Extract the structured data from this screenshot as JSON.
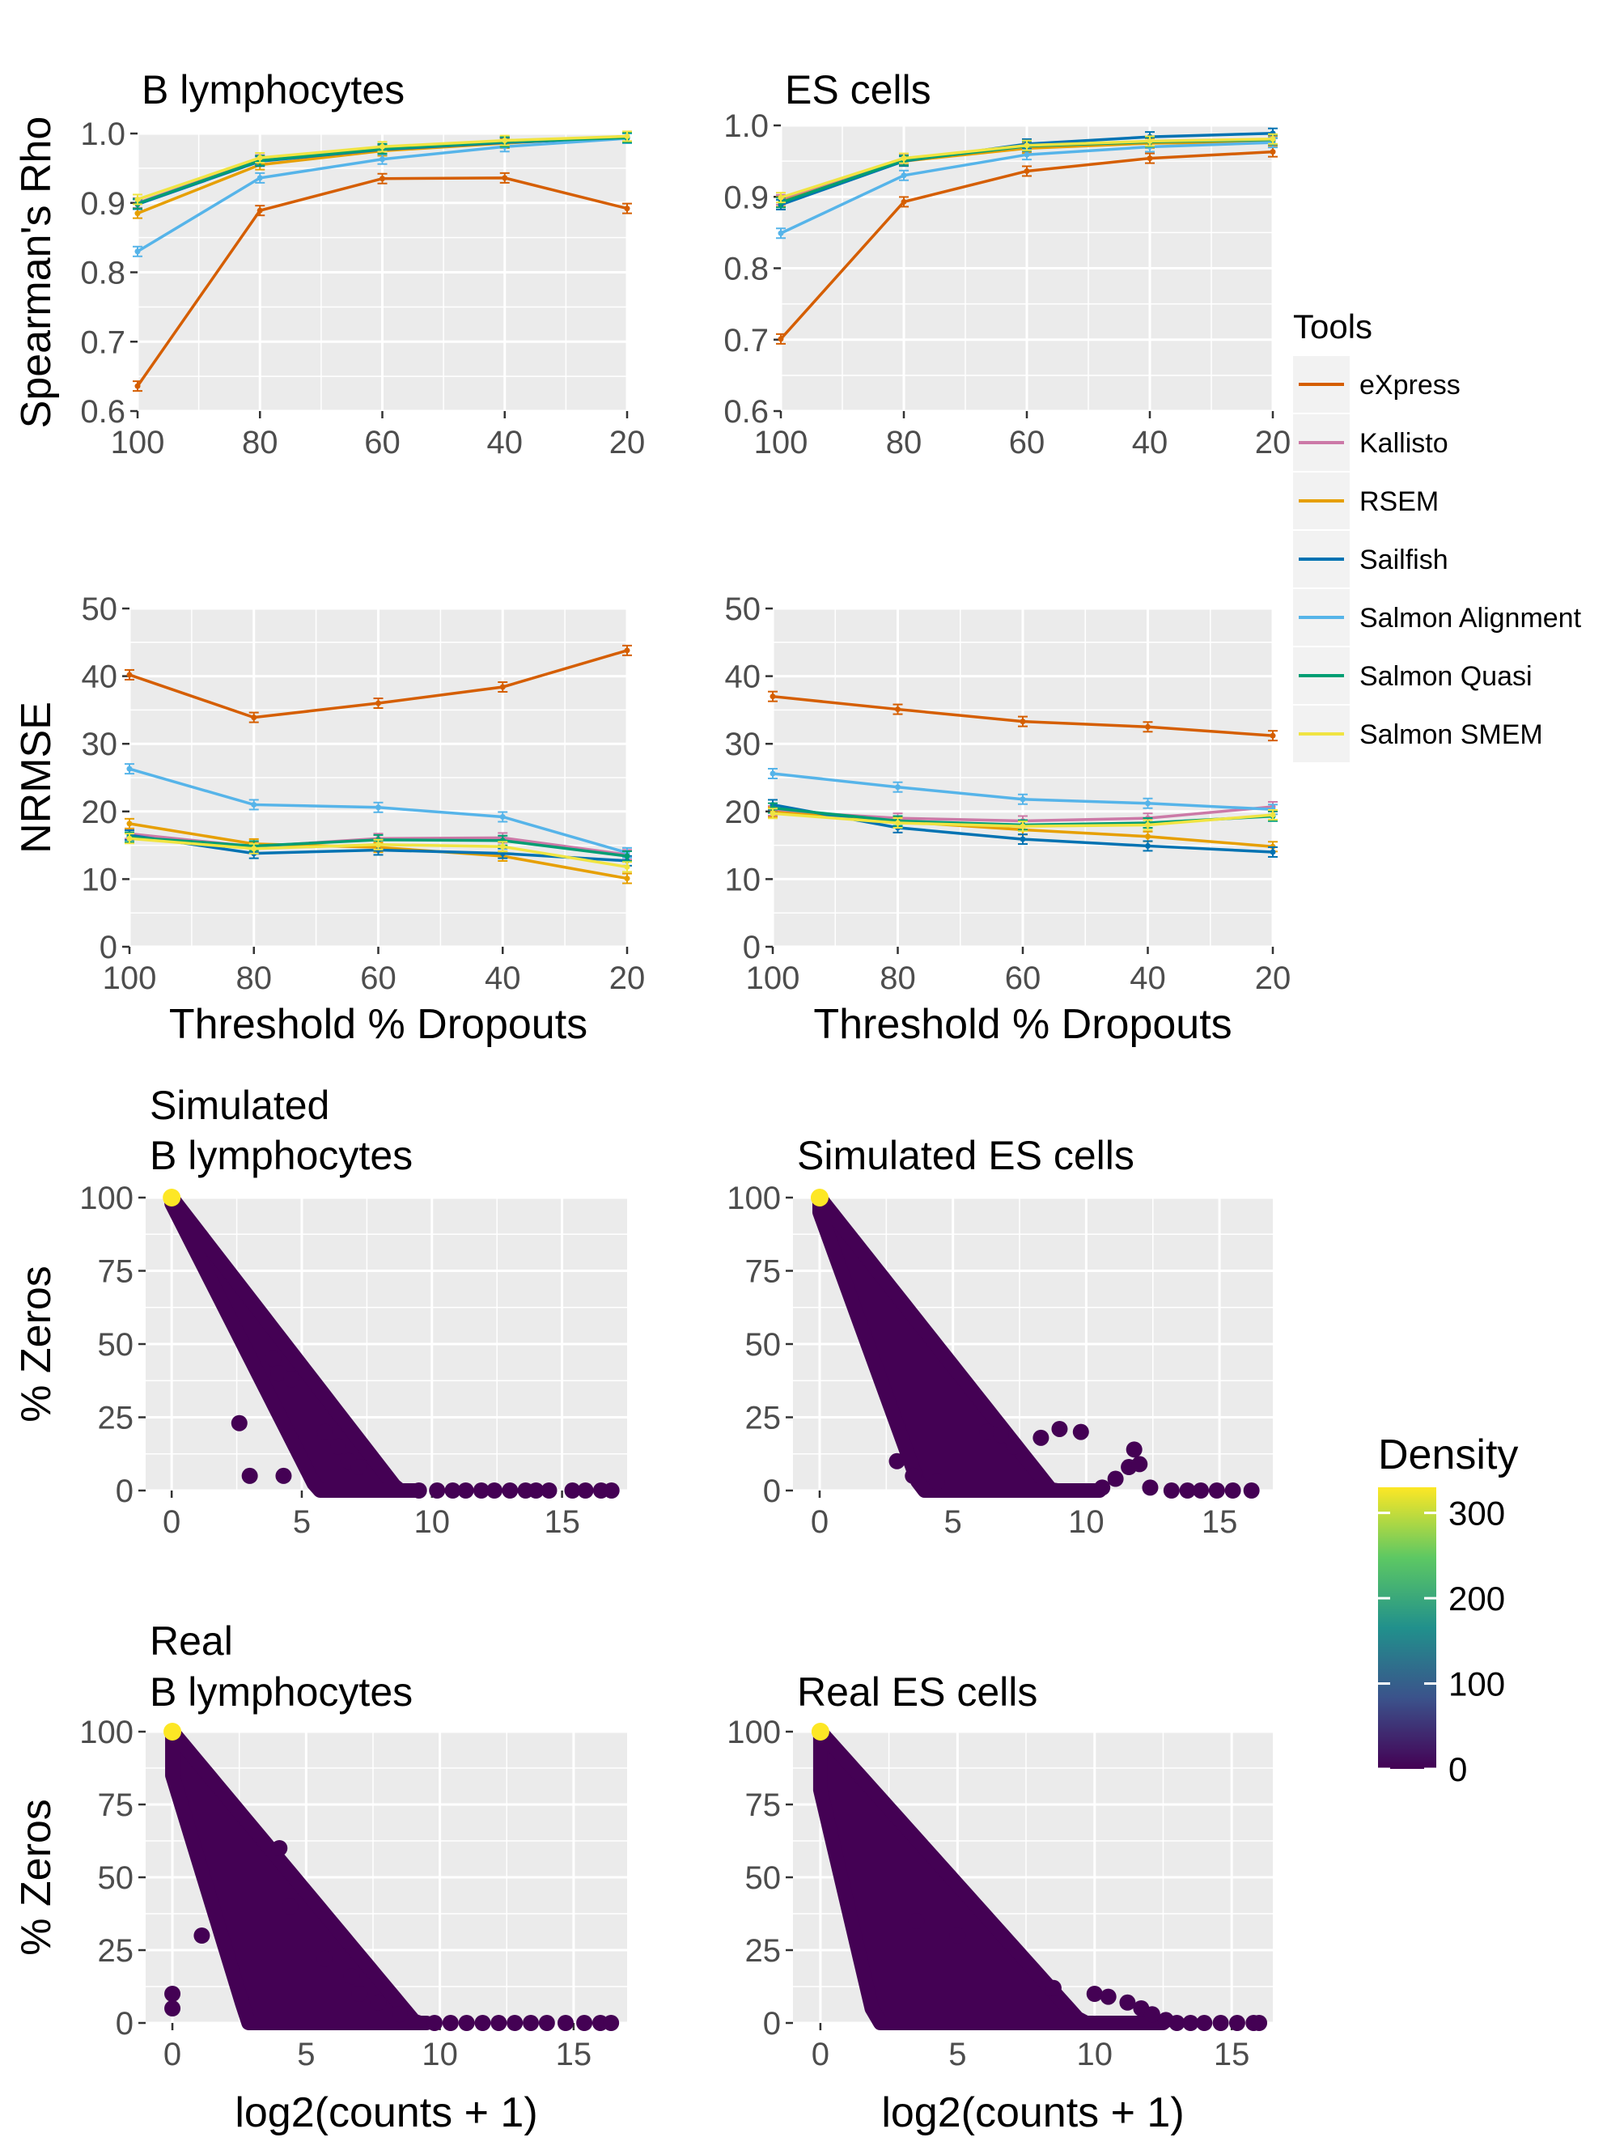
{
  "chart_data": [
    {
      "type": "line",
      "title": "B lymphocytes",
      "xlabel": "",
      "ylabel": "Spearman's Rho",
      "x": [
        100,
        80,
        60,
        40,
        20
      ],
      "xlim": [
        100,
        20
      ],
      "xticks": [
        100,
        80,
        60,
        40,
        20
      ],
      "ylim": [
        0.6,
        1.0
      ],
      "yticks": [
        "0.6",
        "0.7",
        "0.8",
        "0.9",
        "1.0"
      ],
      "series": [
        {
          "name": "eXpress",
          "values": [
            0.636,
            0.889,
            0.935,
            0.936,
            0.892
          ]
        },
        {
          "name": "Kallisto",
          "values": [
            0.9,
            0.962,
            0.978,
            0.988,
            0.994
          ]
        },
        {
          "name": "RSEM",
          "values": [
            0.885,
            0.955,
            0.975,
            0.986,
            0.996
          ]
        },
        {
          "name": "Sailfish",
          "values": [
            0.898,
            0.96,
            0.977,
            0.987,
            0.994
          ]
        },
        {
          "name": "Salmon Alignment",
          "values": [
            0.83,
            0.936,
            0.963,
            0.981,
            0.993
          ]
        },
        {
          "name": "Salmon Quasi",
          "values": [
            0.899,
            0.961,
            0.978,
            0.988,
            0.994
          ]
        },
        {
          "name": "Salmon SMEM",
          "values": [
            0.905,
            0.965,
            0.981,
            0.99,
            0.996
          ]
        }
      ]
    },
    {
      "type": "line",
      "title": "ES cells",
      "xlabel": "",
      "ylabel": "",
      "x": [
        100,
        80,
        60,
        40,
        20
      ],
      "xlim": [
        100,
        20
      ],
      "xticks": [
        100,
        80,
        60,
        40,
        20
      ],
      "ylim": [
        0.6,
        1.0
      ],
      "yticks": [
        "0.6",
        "0.7",
        "0.8",
        "0.9",
        "1.0"
      ],
      "series": [
        {
          "name": "eXpress",
          "values": [
            0.701,
            0.893,
            0.936,
            0.954,
            0.963
          ]
        },
        {
          "name": "Kallisto",
          "values": [
            0.896,
            0.952,
            0.97,
            0.976,
            0.978
          ]
        },
        {
          "name": "RSEM",
          "values": [
            0.893,
            0.95,
            0.968,
            0.975,
            0.977
          ]
        },
        {
          "name": "Sailfish",
          "values": [
            0.889,
            0.95,
            0.974,
            0.984,
            0.989
          ]
        },
        {
          "name": "Salmon Alignment",
          "values": [
            0.849,
            0.93,
            0.959,
            0.97,
            0.976
          ]
        },
        {
          "name": "Salmon Quasi",
          "values": [
            0.892,
            0.951,
            0.971,
            0.977,
            0.98
          ]
        },
        {
          "name": "Salmon SMEM",
          "values": [
            0.899,
            0.954,
            0.972,
            0.978,
            0.981
          ]
        }
      ]
    },
    {
      "type": "line",
      "title": "",
      "xlabel": "Threshold % Dropouts",
      "ylabel": "NRMSE",
      "x": [
        100,
        80,
        60,
        40,
        20
      ],
      "xlim": [
        100,
        20
      ],
      "xticks": [
        100,
        80,
        60,
        40,
        20
      ],
      "ylim": [
        0,
        50
      ],
      "yticks": [
        "0",
        "10",
        "20",
        "30",
        "40",
        "50"
      ],
      "series": [
        {
          "name": "eXpress",
          "values": [
            40.2,
            33.9,
            36.0,
            38.4,
            43.8
          ]
        },
        {
          "name": "Kallisto",
          "values": [
            16.7,
            14.8,
            16.0,
            16.1,
            13.6
          ]
        },
        {
          "name": "RSEM",
          "values": [
            18.2,
            15.2,
            14.7,
            13.4,
            10.1
          ]
        },
        {
          "name": "Sailfish",
          "values": [
            16.5,
            13.8,
            14.3,
            13.8,
            12.7
          ]
        },
        {
          "name": "Salmon Alignment",
          "values": [
            26.3,
            21.0,
            20.6,
            19.2,
            13.9
          ]
        },
        {
          "name": "Salmon Quasi",
          "values": [
            16.2,
            14.9,
            15.8,
            15.7,
            13.4
          ]
        },
        {
          "name": "Salmon SMEM",
          "values": [
            16.0,
            14.5,
            15.1,
            14.8,
            11.8
          ]
        }
      ]
    },
    {
      "type": "line",
      "title": "",
      "xlabel": "Threshold % Dropouts",
      "ylabel": "",
      "x": [
        100,
        80,
        60,
        40,
        20
      ],
      "xlim": [
        100,
        20
      ],
      "xticks": [
        100,
        80,
        60,
        40,
        20
      ],
      "ylim": [
        0,
        50
      ],
      "yticks": [
        "0",
        "10",
        "20",
        "30",
        "40",
        "50"
      ],
      "series": [
        {
          "name": "eXpress",
          "values": [
            37.0,
            35.1,
            33.3,
            32.5,
            31.2
          ]
        },
        {
          "name": "Kallisto",
          "values": [
            20.1,
            19.0,
            18.6,
            19.0,
            20.7
          ]
        },
        {
          "name": "RSEM",
          "values": [
            19.9,
            18.5,
            17.3,
            16.3,
            14.8
          ]
        },
        {
          "name": "Sailfish",
          "values": [
            21.0,
            17.6,
            15.9,
            14.9,
            14.0
          ]
        },
        {
          "name": "Salmon Alignment",
          "values": [
            25.6,
            23.6,
            21.8,
            21.2,
            20.3
          ]
        },
        {
          "name": "Salmon Quasi",
          "values": [
            20.5,
            18.6,
            18.0,
            18.3,
            19.3
          ]
        },
        {
          "name": "Salmon SMEM",
          "values": [
            19.7,
            18.3,
            17.8,
            18.0,
            19.5
          ]
        }
      ]
    },
    {
      "type": "scatter",
      "title": "Simulated\nB lymphocytes",
      "xlabel": "",
      "ylabel": "% Zeros",
      "xlim": [
        -1,
        17.5
      ],
      "xticks": [
        0,
        5,
        10,
        15
      ],
      "ylim": [
        0,
        100
      ],
      "yticks": [
        "0",
        "25",
        "50",
        "75",
        "100"
      ],
      "band": {
        "upper_start": 100,
        "upper_slope": 11.5,
        "lower_start": 98,
        "lower_slope": 17.5,
        "xmax": 9.5
      },
      "tail_points": [
        [
          9.5,
          0
        ],
        [
          10.2,
          0
        ],
        [
          10.8,
          0
        ],
        [
          11.3,
          0
        ],
        [
          11.9,
          0
        ],
        [
          12.4,
          0
        ],
        [
          13.0,
          0
        ],
        [
          13.6,
          0
        ],
        [
          14.0,
          0
        ],
        [
          14.5,
          0
        ],
        [
          15.4,
          0
        ],
        [
          15.9,
          0
        ],
        [
          16.5,
          0
        ],
        [
          16.9,
          0
        ]
      ],
      "scatter_points": [
        [
          6.8,
          10
        ],
        [
          6.4,
          15
        ],
        [
          5.9,
          20
        ],
        [
          7.2,
          8
        ],
        [
          3.9,
          45
        ],
        [
          4.1,
          40
        ],
        [
          4.6,
          38
        ],
        [
          2.6,
          23
        ],
        [
          3.0,
          5
        ],
        [
          4.3,
          5
        ]
      ],
      "hot_point": [
        0,
        100
      ]
    },
    {
      "type": "scatter",
      "title": "Simulated ES cells",
      "xlabel": "",
      "ylabel": "",
      "xlim": [
        -1,
        17
      ],
      "xticks": [
        0,
        5,
        10,
        15
      ],
      "ylim": [
        0,
        100
      ],
      "yticks": [
        "0",
        "25",
        "50",
        "75",
        "100"
      ],
      "band": {
        "upper_start": 100,
        "upper_slope": 11.5,
        "lower_start": 95,
        "lower_slope": 25,
        "xmax": 10.5
      },
      "tail_points": [
        [
          10.6,
          1
        ],
        [
          11.1,
          4
        ],
        [
          11.6,
          8
        ],
        [
          11.8,
          14
        ],
        [
          12.0,
          9
        ],
        [
          12.4,
          1
        ],
        [
          13.2,
          0
        ],
        [
          13.8,
          0
        ],
        [
          14.3,
          0
        ],
        [
          14.9,
          0
        ],
        [
          15.5,
          0
        ],
        [
          16.2,
          0
        ]
      ],
      "scatter_points": [
        [
          6.3,
          20
        ],
        [
          6.8,
          19
        ],
        [
          7.3,
          15
        ],
        [
          8.3,
          18
        ],
        [
          9.0,
          21
        ],
        [
          9.8,
          20
        ],
        [
          3.5,
          5
        ],
        [
          2.9,
          10
        ],
        [
          4.4,
          3
        ]
      ],
      "hot_point": [
        0,
        100
      ]
    },
    {
      "type": "scatter",
      "title": "Real\nB lymphocytes",
      "xlabel": "log2(counts + 1)",
      "ylabel": "% Zeros",
      "xlim": [
        -1,
        17
      ],
      "xticks": [
        0,
        5,
        10,
        15
      ],
      "ylim": [
        0,
        100
      ],
      "yticks": [
        "0",
        "25",
        "50",
        "75",
        "100"
      ],
      "band": {
        "upper_start": 100,
        "upper_slope": 11.0,
        "lower_start": 85,
        "lower_slope": 30,
        "xmax": 9.5
      },
      "tail_points": [
        [
          9.8,
          0
        ],
        [
          10.4,
          0
        ],
        [
          11.0,
          0
        ],
        [
          11.6,
          0
        ],
        [
          12.2,
          0
        ],
        [
          12.8,
          0
        ],
        [
          13.4,
          0
        ],
        [
          14.0,
          0
        ],
        [
          14.7,
          0
        ],
        [
          15.4,
          0
        ],
        [
          16.0,
          0
        ],
        [
          16.4,
          0
        ]
      ],
      "scatter_points": [
        [
          0,
          10
        ],
        [
          0,
          5
        ],
        [
          1.1,
          30
        ],
        [
          7.0,
          10
        ],
        [
          7.7,
          7
        ],
        [
          8.5,
          3
        ],
        [
          4.0,
          60
        ],
        [
          4.4,
          40
        ],
        [
          5.7,
          22
        ],
        [
          6.7,
          16
        ]
      ],
      "hot_point": [
        0,
        100
      ]
    },
    {
      "type": "scatter",
      "title": "Real ES cells",
      "xlabel": "log2(counts + 1)",
      "ylabel": "",
      "xlim": [
        -1,
        16.5
      ],
      "xticks": [
        0,
        5,
        10,
        15
      ],
      "ylim": [
        0,
        100
      ],
      "yticks": [
        "0",
        "25",
        "50",
        "75",
        "100"
      ],
      "band": {
        "upper_start": 100,
        "upper_slope": 10.5,
        "lower_start": 80,
        "lower_slope": 40,
        "xmax": 12.5
      },
      "tail_points": [
        [
          12.6,
          1
        ],
        [
          13.0,
          0
        ],
        [
          13.5,
          0
        ],
        [
          14.0,
          0
        ],
        [
          14.6,
          0
        ],
        [
          15.2,
          0
        ],
        [
          15.8,
          0
        ],
        [
          16.0,
          0
        ]
      ],
      "scatter_points": [
        [
          10.0,
          10
        ],
        [
          10.5,
          9
        ],
        [
          11.2,
          7
        ],
        [
          11.7,
          5
        ],
        [
          12.1,
          3
        ],
        [
          8.5,
          12
        ],
        [
          3.5,
          35
        ],
        [
          5.0,
          30
        ]
      ],
      "hot_point": [
        0,
        100
      ]
    }
  ],
  "legend_tools": {
    "title": "Tools",
    "items": [
      {
        "name": "eXpress",
        "color": "#D55E00"
      },
      {
        "name": "Kallisto",
        "color": "#CC79A7"
      },
      {
        "name": "RSEM",
        "color": "#E69F00"
      },
      {
        "name": "Sailfish",
        "color": "#0072B2"
      },
      {
        "name": "Salmon Alignment",
        "color": "#56B4E9"
      },
      {
        "name": "Salmon Quasi",
        "color": "#009E73"
      },
      {
        "name": "Salmon SMEM",
        "color": "#F0E442"
      }
    ]
  },
  "legend_density": {
    "title": "Density",
    "ticks": [
      "0",
      "100",
      "200",
      "300"
    ],
    "range": [
      0,
      330
    ],
    "colors": [
      "#440154",
      "#3B528B",
      "#21908C",
      "#5DC863",
      "#FDE725"
    ]
  },
  "panel_bg": "#EBEBEB",
  "scatter_color": "#440154"
}
